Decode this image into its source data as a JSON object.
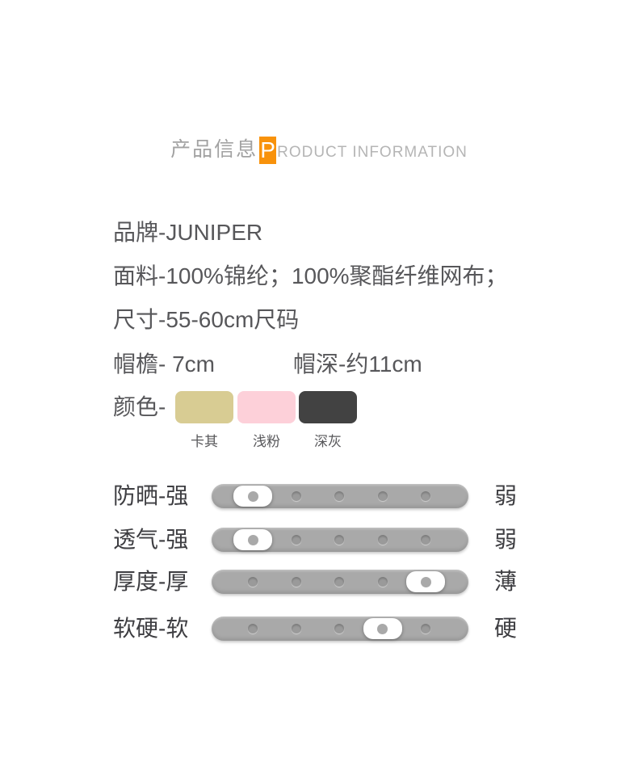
{
  "header": {
    "title_cn": "产品信息",
    "title_en_initial": "P",
    "title_en_rest": "RODUCT INFORMATION",
    "accent_color": "#f8920b"
  },
  "specs": {
    "brand": "品牌-JUNIPER",
    "fabric": "面料-100%锦纶；100%聚酯纤维网布；",
    "size": "尺寸-55-60cm尺码",
    "brim": "帽檐- 7cm",
    "depth": "帽深-约11cm",
    "color_label": "颜色-",
    "colors": [
      {
        "name": "卡其",
        "hex": "#d8cc93"
      },
      {
        "name": "浅粉",
        "hex": "#fdd0d9"
      },
      {
        "name": "深灰",
        "hex": "#424242"
      }
    ]
  },
  "sliders": {
    "dot_count": 5,
    "rows": [
      {
        "left": "防晒-强",
        "right": "弱",
        "position": 1
      },
      {
        "left": "透气-强",
        "right": "弱",
        "position": 1
      },
      {
        "left": "厚度-厚",
        "right": "薄",
        "position": 5
      },
      {
        "left": "软硬-软",
        "right": "硬",
        "position": 4
      }
    ]
  }
}
